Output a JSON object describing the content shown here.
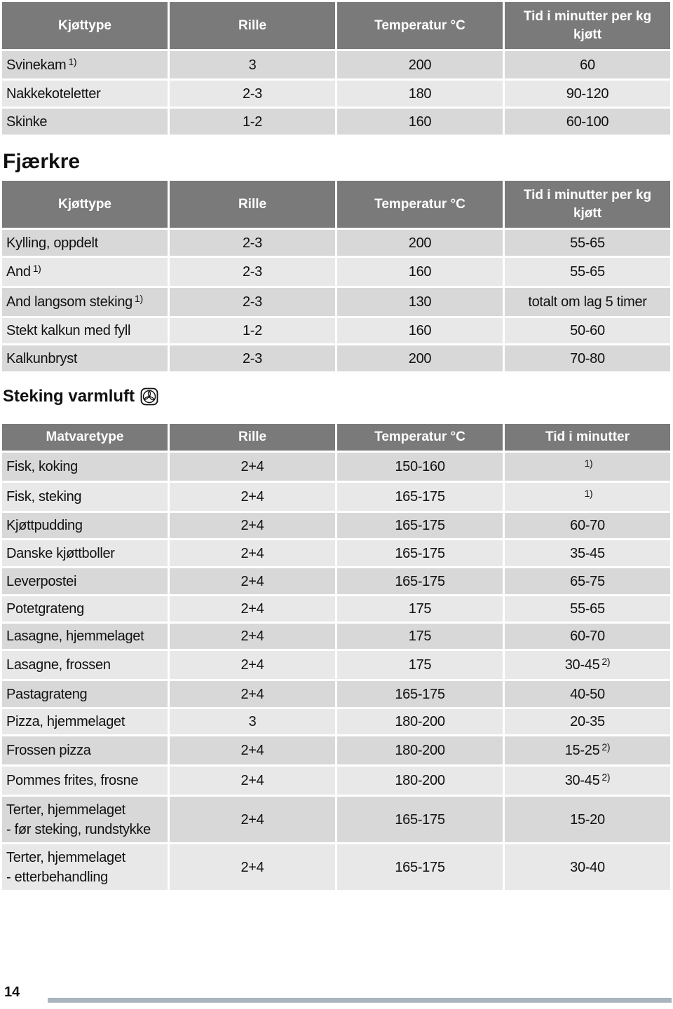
{
  "pork_table": {
    "headers": [
      "Kjøttype",
      "Rille",
      "Temperatur °C",
      "Tid i minutter per kg kjøtt"
    ],
    "rows": [
      {
        "name": "Svinekam",
        "note": "1)",
        "rille": "3",
        "temp": "200",
        "time": "60",
        "time_note": ""
      },
      {
        "name": "Nakkekoteletter",
        "note": "",
        "rille": "2-3",
        "temp": "180",
        "time": "90-120",
        "time_note": ""
      },
      {
        "name": "Skinke",
        "note": "",
        "rille": "1-2",
        "temp": "160",
        "time": "60-100",
        "time_note": ""
      }
    ]
  },
  "poultry": {
    "title": "Fjærkre",
    "headers": [
      "Kjøttype",
      "Rille",
      "Temperatur °C",
      "Tid i minutter per kg kjøtt"
    ],
    "rows": [
      {
        "name": "Kylling, oppdelt",
        "note": "",
        "rille": "2-3",
        "temp": "200",
        "time": "55-65",
        "time_note": ""
      },
      {
        "name": "And",
        "note": "1)",
        "rille": "2-3",
        "temp": "160",
        "time": "55-65",
        "time_note": ""
      },
      {
        "name": "And langsom steking",
        "note": "1)",
        "rille": "2-3",
        "temp": "130",
        "time": "totalt om lag 5 timer",
        "time_note": ""
      },
      {
        "name": "Stekt kalkun med fyll",
        "note": "",
        "rille": "1-2",
        "temp": "160",
        "time": "50-60",
        "time_note": ""
      },
      {
        "name": "Kalkunbryst",
        "note": "",
        "rille": "2-3",
        "temp": "200",
        "time": "70-80",
        "time_note": ""
      }
    ]
  },
  "convection": {
    "title": "Steking varmluft",
    "icon": "fan-icon",
    "headers": [
      "Matvaretype",
      "Rille",
      "Temperatur °C",
      "Tid i minutter"
    ],
    "rows": [
      {
        "name": "Fisk, koking",
        "name2": "",
        "rille": "2+4",
        "temp": "150-160",
        "time": "",
        "time_note": "1)"
      },
      {
        "name": "Fisk, steking",
        "name2": "",
        "rille": "2+4",
        "temp": "165-175",
        "time": "",
        "time_note": "1)"
      },
      {
        "name": "Kjøttpudding",
        "name2": "",
        "rille": "2+4",
        "temp": "165-175",
        "time": "60-70",
        "time_note": ""
      },
      {
        "name": "Danske kjøttboller",
        "name2": "",
        "rille": "2+4",
        "temp": "165-175",
        "time": "35-45",
        "time_note": ""
      },
      {
        "name": "Leverpostei",
        "name2": "",
        "rille": "2+4",
        "temp": "165-175",
        "time": "65-75",
        "time_note": ""
      },
      {
        "name": "Potetgrateng",
        "name2": "",
        "rille": "2+4",
        "temp": "175",
        "time": "55-65",
        "time_note": ""
      },
      {
        "name": "Lasagne, hjemmelaget",
        "name2": "",
        "rille": "2+4",
        "temp": "175",
        "time": "60-70",
        "time_note": ""
      },
      {
        "name": "Lasagne, frossen",
        "name2": "",
        "rille": "2+4",
        "temp": "175",
        "time": "30-45",
        "time_note": "2)"
      },
      {
        "name": "Pastagrateng",
        "name2": "",
        "rille": "2+4",
        "temp": "165-175",
        "time": "40-50",
        "time_note": ""
      },
      {
        "name": "Pizza, hjemmelaget",
        "name2": "",
        "rille": "3",
        "temp": "180-200",
        "time": "20-35",
        "time_note": ""
      },
      {
        "name": "Frossen pizza",
        "name2": "",
        "rille": "2+4",
        "temp": "180-200",
        "time": "15-25",
        "time_note": "2)"
      },
      {
        "name": "Pommes frites, frosne",
        "name2": "",
        "rille": "2+4",
        "temp": "180-200",
        "time": "30-45",
        "time_note": "2)"
      },
      {
        "name": "Terter, hjemmelaget",
        "name2": "- før steking, rundstykke",
        "rille": "2+4",
        "temp": "165-175",
        "time": "15-20",
        "time_note": ""
      },
      {
        "name": "Terter, hjemmelaget",
        "name2": "- etterbehandling",
        "rille": "2+4",
        "temp": "165-175",
        "time": "30-40",
        "time_note": ""
      }
    ]
  },
  "footer": {
    "page_number": "14",
    "rule_color": "#aab4be"
  }
}
